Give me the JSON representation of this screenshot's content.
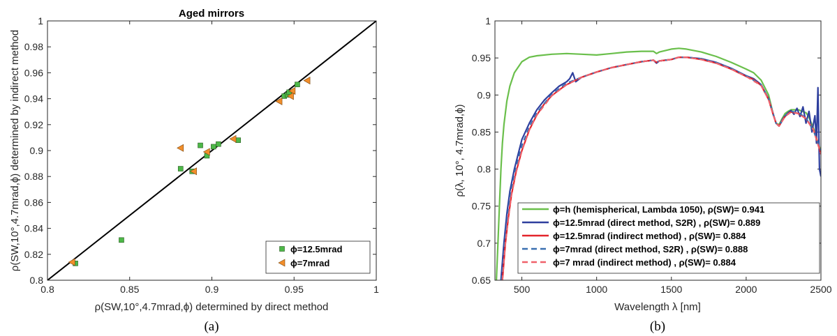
{
  "chart_data": [
    {
      "type": "scatter",
      "title": "Aged mirrors",
      "xlabel": "ρ(SW,10°,4.7mrad,ϕ) determined by direct method",
      "ylabel": "ρ(SW,10°,4.7mrad,ϕ) determined by indirect method",
      "xlim": [
        0.8,
        1
      ],
      "ylim": [
        0.8,
        1
      ],
      "xticks": [
        "0.8",
        "0.85",
        "0.9",
        "0.95",
        "1"
      ],
      "yticks": [
        "0.8",
        "0.82",
        "0.84",
        "0.86",
        "0.88",
        "0.9",
        "0.92",
        "0.94",
        "0.96",
        "0.98",
        "1"
      ],
      "grid": false,
      "legend_position": "bottom-right",
      "caption": "(a)",
      "reference_line": {
        "x": [
          0.8,
          1
        ],
        "y": [
          0.8,
          1
        ],
        "color": "#000000"
      },
      "series": [
        {
          "name": "ϕ=12.5mrad",
          "marker": "square",
          "color": "#4db848",
          "points": [
            [
              0.817,
              0.813
            ],
            [
              0.845,
              0.831
            ],
            [
              0.881,
              0.886
            ],
            [
              0.888,
              0.884
            ],
            [
              0.893,
              0.904
            ],
            [
              0.897,
              0.896
            ],
            [
              0.901,
              0.903
            ],
            [
              0.904,
              0.905
            ],
            [
              0.916,
              0.908
            ],
            [
              0.944,
              0.942
            ],
            [
              0.946,
              0.943
            ],
            [
              0.947,
              0.945
            ],
            [
              0.952,
              0.951
            ]
          ]
        },
        {
          "name": "ϕ=7mrad",
          "marker": "triangle-left",
          "color": "#f28e2b",
          "points": [
            [
              0.815,
              0.814
            ],
            [
              0.881,
              0.902
            ],
            [
              0.889,
              0.884
            ],
            [
              0.897,
              0.899
            ],
            [
              0.913,
              0.909
            ],
            [
              0.941,
              0.938
            ],
            [
              0.948,
              0.942
            ],
            [
              0.949,
              0.946
            ],
            [
              0.958,
              0.954
            ]
          ]
        }
      ]
    },
    {
      "type": "line",
      "title": "",
      "xlabel": "Wavelength λ [nm]",
      "ylabel": "ρ(λ, 10°, 4.7mrad,ϕ)",
      "xlim": [
        320,
        2500
      ],
      "ylim": [
        0.65,
        1
      ],
      "xticks": [
        "500",
        "1000",
        "1500",
        "2000",
        "2500"
      ],
      "yticks": [
        "0.65",
        "0.7",
        "0.75",
        "0.8",
        "0.85",
        "0.9",
        "0.95",
        "1"
      ],
      "grid": false,
      "legend_position": "bottom-left",
      "caption": "(b)",
      "series": [
        {
          "name": "ϕ=h (hemispherical, Lambda 1050), ρ(SW)= 0.941",
          "color": "#6abf4b",
          "dash": "solid",
          "x": [
            330,
            340,
            350,
            360,
            370,
            380,
            400,
            420,
            450,
            500,
            550,
            600,
            700,
            800,
            900,
            1000,
            1100,
            1200,
            1300,
            1380,
            1400,
            1420,
            1500,
            1550,
            1600,
            1700,
            1800,
            1900,
            2000,
            2050,
            2100,
            2150,
            2180,
            2200,
            2220,
            2240,
            2260,
            2280,
            2300,
            2350,
            2400,
            2420,
            2440,
            2460,
            2480,
            2500
          ],
          "y": [
            0.65,
            0.7,
            0.75,
            0.8,
            0.835,
            0.86,
            0.892,
            0.912,
            0.93,
            0.945,
            0.951,
            0.953,
            0.955,
            0.956,
            0.955,
            0.954,
            0.956,
            0.958,
            0.959,
            0.959,
            0.956,
            0.958,
            0.962,
            0.963,
            0.962,
            0.958,
            0.952,
            0.944,
            0.935,
            0.93,
            0.92,
            0.9,
            0.875,
            0.862,
            0.86,
            0.868,
            0.875,
            0.878,
            0.88,
            0.88,
            0.876,
            0.87,
            0.86,
            0.85,
            0.835,
            0.825
          ]
        },
        {
          "name": "ϕ=12.5mrad (direct method, S2R) , ρ(SW)= 0.889",
          "color": "#2e3f9e",
          "dash": "solid",
          "x": [
            360,
            380,
            400,
            420,
            450,
            500,
            550,
            600,
            650,
            700,
            750,
            800,
            820,
            840,
            860,
            900,
            1000,
            1100,
            1200,
            1300,
            1380,
            1400,
            1420,
            1500,
            1550,
            1600,
            1700,
            1800,
            1900,
            2000,
            2050,
            2100,
            2150,
            2180,
            2200,
            2220,
            2240,
            2260,
            2280,
            2300,
            2320,
            2340,
            2360,
            2380,
            2400,
            2420,
            2440,
            2460,
            2470,
            2480,
            2490,
            2500
          ],
          "y": [
            0.65,
            0.7,
            0.74,
            0.77,
            0.8,
            0.84,
            0.862,
            0.88,
            0.893,
            0.903,
            0.912,
            0.918,
            0.922,
            0.93,
            0.918,
            0.924,
            0.931,
            0.937,
            0.941,
            0.945,
            0.947,
            0.943,
            0.946,
            0.948,
            0.951,
            0.951,
            0.949,
            0.944,
            0.936,
            0.926,
            0.922,
            0.914,
            0.895,
            0.875,
            0.862,
            0.858,
            0.866,
            0.872,
            0.876,
            0.879,
            0.874,
            0.882,
            0.871,
            0.884,
            0.862,
            0.878,
            0.85,
            0.872,
            0.835,
            0.91,
            0.8,
            0.79
          ]
        },
        {
          "name": "ϕ=12.5mrad (indirect method) , ρ(SW)= 0.884",
          "color": "#e3242b",
          "dash": "solid",
          "x": [
            370,
            390,
            410,
            430,
            460,
            500,
            550,
            600,
            650,
            700,
            750,
            800,
            850,
            900,
            1000,
            1100,
            1200,
            1300,
            1380,
            1400,
            1420,
            1500,
            1550,
            1600,
            1700,
            1800,
            1900,
            2000,
            2050,
            2100,
            2150,
            2180,
            2200,
            2220,
            2240,
            2260,
            2280,
            2300,
            2350,
            2400,
            2450,
            2480,
            2500
          ],
          "y": [
            0.65,
            0.7,
            0.735,
            0.765,
            0.795,
            0.825,
            0.853,
            0.873,
            0.888,
            0.899,
            0.907,
            0.914,
            0.919,
            0.924,
            0.931,
            0.937,
            0.941,
            0.945,
            0.947,
            0.944,
            0.946,
            0.948,
            0.951,
            0.951,
            0.948,
            0.943,
            0.935,
            0.925,
            0.921,
            0.913,
            0.894,
            0.874,
            0.862,
            0.858,
            0.865,
            0.871,
            0.875,
            0.877,
            0.875,
            0.868,
            0.853,
            0.835,
            0.82
          ]
        },
        {
          "name": "ϕ=7mrad (direct method, S2R) , ρ(SW)= 0.888",
          "color": "#3a6fb0",
          "dash": "dashed",
          "x": [
            365,
            385,
            405,
            425,
            455,
            500,
            550,
            600,
            700,
            800,
            900,
            1000,
            1100,
            1200,
            1300,
            1380,
            1400,
            1420,
            1500,
            1550,
            1600,
            1700,
            1800,
            1900,
            2000,
            2100,
            2150,
            2180,
            2200,
            2220,
            2260,
            2300,
            2350,
            2400,
            2450,
            2500
          ],
          "y": [
            0.65,
            0.7,
            0.738,
            0.768,
            0.798,
            0.832,
            0.857,
            0.876,
            0.901,
            0.916,
            0.924,
            0.931,
            0.937,
            0.941,
            0.945,
            0.947,
            0.944,
            0.946,
            0.948,
            0.951,
            0.951,
            0.949,
            0.944,
            0.936,
            0.926,
            0.914,
            0.895,
            0.875,
            0.862,
            0.858,
            0.872,
            0.878,
            0.876,
            0.869,
            0.852,
            0.825
          ]
        },
        {
          "name": "ϕ=7 mrad (indirect method) , ρ(SW)= 0.884",
          "color": "#f0616a",
          "dash": "dashed",
          "x": [
            370,
            390,
            410,
            430,
            460,
            500,
            550,
            600,
            700,
            800,
            900,
            1000,
            1100,
            1200,
            1300,
            1380,
            1400,
            1420,
            1500,
            1550,
            1600,
            1700,
            1800,
            1900,
            2000,
            2100,
            2150,
            2180,
            2200,
            2220,
            2260,
            2300,
            2350,
            2400,
            2450,
            2500
          ],
          "y": [
            0.65,
            0.7,
            0.735,
            0.765,
            0.795,
            0.825,
            0.853,
            0.873,
            0.899,
            0.914,
            0.924,
            0.931,
            0.937,
            0.941,
            0.945,
            0.947,
            0.944,
            0.946,
            0.948,
            0.951,
            0.951,
            0.948,
            0.943,
            0.935,
            0.925,
            0.913,
            0.894,
            0.874,
            0.862,
            0.858,
            0.871,
            0.877,
            0.875,
            0.868,
            0.853,
            0.82
          ]
        }
      ]
    }
  ]
}
